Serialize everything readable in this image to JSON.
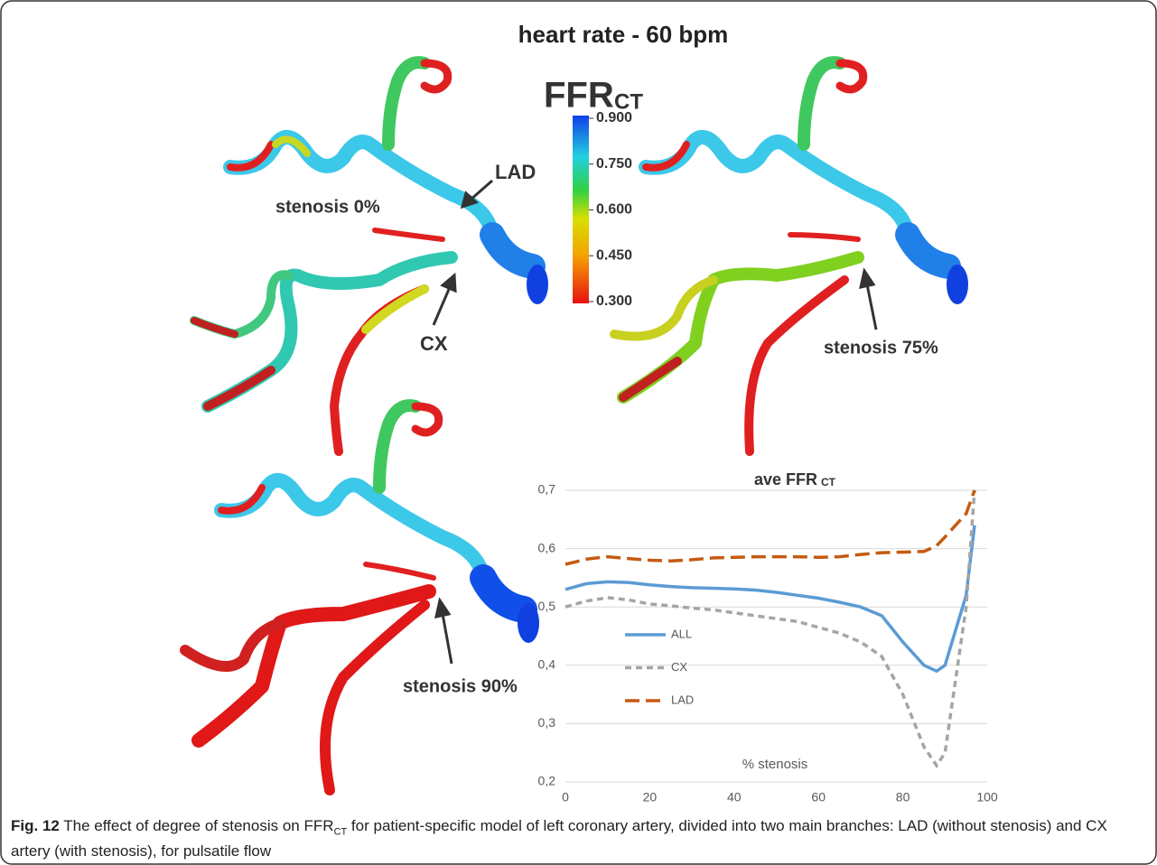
{
  "title": "heart rate - 60 bpm",
  "colorbar": {
    "label": "FFR",
    "label_subscript": "CT",
    "range": [
      0.3,
      0.9
    ],
    "ticks": [
      {
        "value": 0.9,
        "label": "0.900"
      },
      {
        "value": 0.75,
        "label": "0.750"
      },
      {
        "value": 0.6,
        "label": "0.600"
      },
      {
        "value": 0.45,
        "label": "0.450"
      },
      {
        "value": 0.3,
        "label": "0.300"
      }
    ]
  },
  "annotations": [
    "LAD",
    "stenosis 0%",
    "CX",
    "stenosis 75%",
    "stenosis 90%"
  ],
  "chart_data": {
    "type": "line",
    "title": "ave FFR",
    "title_subscript": "CT",
    "x_label": "% stenosis",
    "x": [
      0,
      5,
      10,
      15,
      20,
      25,
      30,
      35,
      40,
      45,
      50,
      55,
      60,
      65,
      70,
      75,
      80,
      85,
      88,
      90,
      95,
      97
    ],
    "series": [
      {
        "name": "ALL",
        "color": "#5b9bd5",
        "dash": "solid",
        "values": [
          0.53,
          0.54,
          0.543,
          0.542,
          0.538,
          0.535,
          0.533,
          0.532,
          0.531,
          0.529,
          0.525,
          0.52,
          0.515,
          0.508,
          0.5,
          0.485,
          0.44,
          0.4,
          0.39,
          0.4,
          0.52,
          0.64
        ]
      },
      {
        "name": "CX",
        "color": "#a5a5a5",
        "dash": "dash",
        "values": [
          0.5,
          0.51,
          0.516,
          0.512,
          0.505,
          0.502,
          0.498,
          0.495,
          0.49,
          0.485,
          0.48,
          0.475,
          0.465,
          0.455,
          0.44,
          0.415,
          0.35,
          0.26,
          0.228,
          0.25,
          0.5,
          0.7
        ]
      },
      {
        "name": "LAD",
        "color": "#c55a11",
        "dash": "longdash",
        "values": [
          0.573,
          0.582,
          0.586,
          0.583,
          0.58,
          0.579,
          0.581,
          0.584,
          0.585,
          0.586,
          0.586,
          0.586,
          0.585,
          0.586,
          0.59,
          0.593,
          0.594,
          0.595,
          0.605,
          0.62,
          0.66,
          0.7
        ]
      }
    ],
    "xlim": [
      0,
      100
    ],
    "xticks": [
      0,
      20,
      40,
      60,
      80,
      100
    ],
    "ylim": [
      0.2,
      0.7
    ],
    "yticks": [
      {
        "value": 0.2,
        "label": "0,2"
      },
      {
        "value": 0.3,
        "label": "0,3"
      },
      {
        "value": 0.4,
        "label": "0,4"
      },
      {
        "value": 0.5,
        "label": "0,5"
      },
      {
        "value": 0.6,
        "label": "0,6"
      },
      {
        "value": 0.7,
        "label": "0,7"
      }
    ],
    "grid": true
  },
  "caption": {
    "label": "Fig. 12",
    "text_before": "The effect of degree of stenosis on FFR",
    "subscript": "CT",
    "text_after": " for patient-specific model of left coronary artery, divided into two main branches: LAD (without stenosis) and CX artery (with stenosis), for pulsatile flow"
  }
}
